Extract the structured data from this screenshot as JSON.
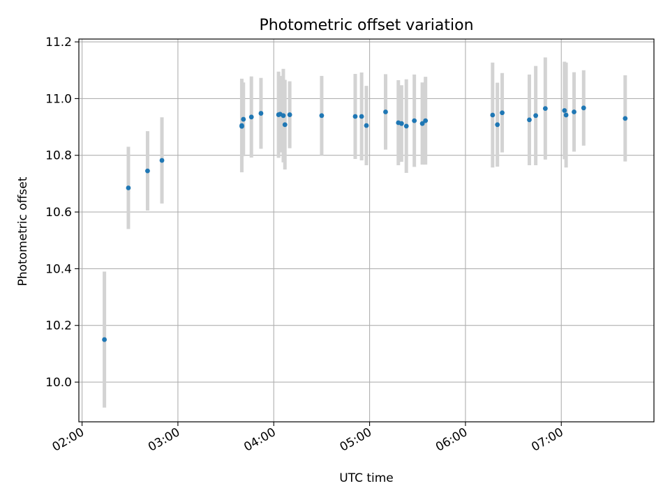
{
  "chart_data": {
    "type": "scatter",
    "title": "Photometric offset variation",
    "xlabel": "UTC time",
    "ylabel": "Photometric offset",
    "x_unit": "UTC",
    "xlim": [
      "01:58",
      "07:58"
    ],
    "ylim": [
      9.86,
      11.21
    ],
    "x_ticks": [
      "02:00",
      "03:00",
      "04:00",
      "05:00",
      "06:00",
      "07:00"
    ],
    "y_ticks": [
      "10.0",
      "10.2",
      "10.4",
      "10.6",
      "10.8",
      "11.0",
      "11.2"
    ],
    "grid": true,
    "colors": {
      "points": "#1f77b4",
      "error_bars": "#d3d3d3",
      "grid": "#b0b0b0"
    },
    "points": [
      {
        "x": "02:14",
        "y": 10.15,
        "err": 0.24
      },
      {
        "x": "02:29",
        "y": 10.685,
        "err": 0.145
      },
      {
        "x": "02:41",
        "y": 10.745,
        "err": 0.14
      },
      {
        "x": "02:50",
        "y": 10.782,
        "err": 0.152
      },
      {
        "x": "03:40",
        "y": 10.905,
        "err": 0.165
      },
      {
        "x": "03:40",
        "y": 10.902,
        "err": 0.16
      },
      {
        "x": "03:41",
        "y": 10.927,
        "err": 0.13
      },
      {
        "x": "03:46",
        "y": 10.935,
        "err": 0.143
      },
      {
        "x": "03:52",
        "y": 10.948,
        "err": 0.125
      },
      {
        "x": "04:03",
        "y": 10.943,
        "err": 0.152
      },
      {
        "x": "04:04",
        "y": 10.945,
        "err": 0.135
      },
      {
        "x": "04:06",
        "y": 10.94,
        "err": 0.165
      },
      {
        "x": "04:07",
        "y": 10.908,
        "err": 0.158
      },
      {
        "x": "04:10",
        "y": 10.943,
        "err": 0.118
      },
      {
        "x": "04:30",
        "y": 10.94,
        "err": 0.14
      },
      {
        "x": "04:51",
        "y": 10.937,
        "err": 0.15
      },
      {
        "x": "04:55",
        "y": 10.937,
        "err": 0.155
      },
      {
        "x": "04:58",
        "y": 10.905,
        "err": 0.14
      },
      {
        "x": "05:10",
        "y": 10.953,
        "err": 0.133
      },
      {
        "x": "05:18",
        "y": 10.915,
        "err": 0.15
      },
      {
        "x": "05:20",
        "y": 10.912,
        "err": 0.135
      },
      {
        "x": "05:23",
        "y": 10.903,
        "err": 0.165
      },
      {
        "x": "05:28",
        "y": 10.922,
        "err": 0.163
      },
      {
        "x": "05:33",
        "y": 10.912,
        "err": 0.145
      },
      {
        "x": "05:35",
        "y": 10.922,
        "err": 0.155
      },
      {
        "x": "06:17",
        "y": 10.942,
        "err": 0.185
      },
      {
        "x": "06:20",
        "y": 10.908,
        "err": 0.148
      },
      {
        "x": "06:23",
        "y": 10.95,
        "err": 0.14
      },
      {
        "x": "06:40",
        "y": 10.925,
        "err": 0.16
      },
      {
        "x": "06:44",
        "y": 10.94,
        "err": 0.175
      },
      {
        "x": "06:50",
        "y": 10.965,
        "err": 0.18
      },
      {
        "x": "07:02",
        "y": 10.958,
        "err": 0.172
      },
      {
        "x": "07:03",
        "y": 10.942,
        "err": 0.185
      },
      {
        "x": "07:08",
        "y": 10.953,
        "err": 0.14
      },
      {
        "x": "07:14",
        "y": 10.967,
        "err": 0.133
      },
      {
        "x": "07:40",
        "y": 10.93,
        "err": 0.152
      }
    ]
  }
}
